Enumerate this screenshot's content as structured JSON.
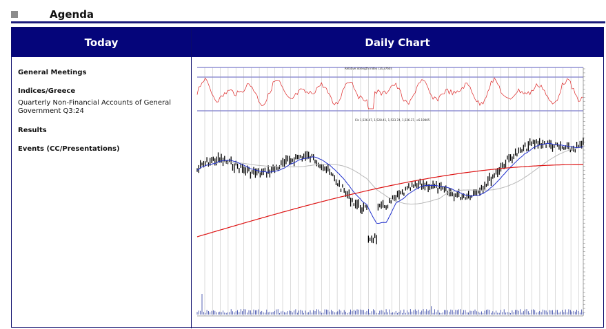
{
  "header": {
    "title": "Agenda"
  },
  "table": {
    "left_header": "Today",
    "right_header": "Daily Chart"
  },
  "agenda": {
    "general_meetings": "General Meetings",
    "indices_title": "Indices/Greece",
    "indices_text": "Quarterly Non-Financial Accounts of General Government Q3:24",
    "results": "Results",
    "events": "Events (CC/Presentations)"
  },
  "chart_data": {
    "type": "line",
    "rsi_title": "Relative Strength Index (14,3760)",
    "price_legend": "Cls 1,526.47, 1,528.41, 1,523.74, 1,526.37, +6.19905",
    "rsi_levels": [
      70,
      30
    ],
    "rsi_ylim": [
      20,
      90
    ],
    "price_ylim": [
      1130,
      1560
    ],
    "volume_ylim": [
      0,
      50000
    ]
  },
  "colors": {
    "header_bg": "#05057a",
    "rsi": "#dd2222",
    "ma_fast": "#1f2fcc",
    "ma_slow": "#dd1111",
    "ma_mid": "#b8b8b8"
  }
}
